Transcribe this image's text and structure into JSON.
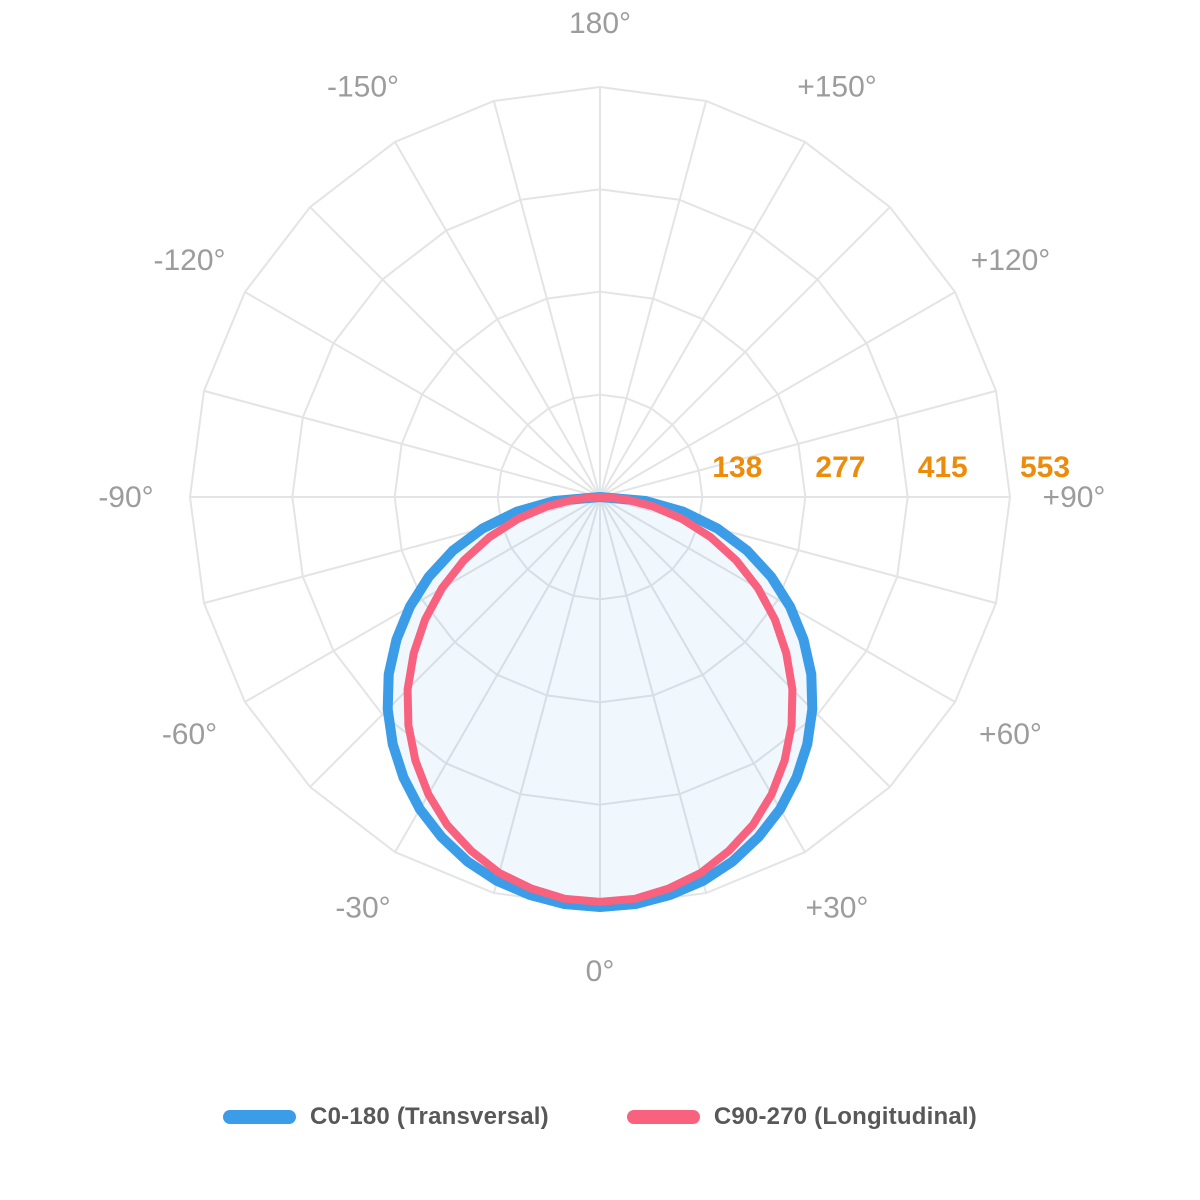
{
  "chart_data": {
    "type": "polar_photometric",
    "description": "Luminous intensity distribution polar diagram (light fixture photometry), lower hemisphere, two C-planes",
    "grid": {
      "spoke_step_deg": 15,
      "ring_style": "24-sided polygon",
      "grid_color": "#E3E4E6",
      "grid_on": true
    },
    "scale_max": 553,
    "radial_ticks": [
      138,
      277,
      415,
      553
    ],
    "radial_tick_labels": [
      "138",
      "277",
      "415",
      "553"
    ],
    "radial_tick_color": "#ED8B0B",
    "angle_labels": [
      {
        "angle": 0,
        "label": "0°"
      },
      {
        "angle": 30,
        "label": "+30°"
      },
      {
        "angle": 60,
        "label": "+60°"
      },
      {
        "angle": 90,
        "label": "+90°"
      },
      {
        "angle": 120,
        "label": "+120°"
      },
      {
        "angle": 150,
        "label": "+150°"
      },
      {
        "angle": 180,
        "label": "180°"
      },
      {
        "angle": -150,
        "label": "-150°"
      },
      {
        "angle": -120,
        "label": "-120°"
      },
      {
        "angle": -90,
        "label": "-90°"
      },
      {
        "angle": -60,
        "label": "-60°"
      },
      {
        "angle": -30,
        "label": "-30°"
      }
    ],
    "angle_label_color": "#9C9C9C",
    "series": [
      {
        "name": "C0-180 (Transversal)",
        "color": "#3B9DE8",
        "stroke_width": 10,
        "fill": "rgba(61,157,232,0.08)",
        "angles_deg": [
          -90,
          -85,
          -80,
          -75,
          -70,
          -65,
          -60,
          -55,
          -50,
          -45,
          -40,
          -35,
          -30,
          -25,
          -20,
          -15,
          -10,
          -5,
          0,
          5,
          10,
          15,
          20,
          25,
          30,
          35,
          40,
          45,
          50,
          55,
          60,
          65,
          70,
          75,
          80,
          85,
          90
        ],
        "values": [
          0,
          62,
          114,
          164,
          211,
          255,
          296,
          335,
          372,
          405,
          435,
          462,
          486,
          506,
          523,
          536,
          545,
          551,
          553,
          551,
          545,
          536,
          523,
          506,
          486,
          462,
          435,
          405,
          372,
          335,
          296,
          255,
          211,
          164,
          114,
          62,
          0
        ]
      },
      {
        "name": "C90-270 (Longitudinal)",
        "color": "#F8627F",
        "stroke_width": 8,
        "fill": "none",
        "angles_deg": [
          -90,
          -85,
          -80,
          -75,
          -70,
          -65,
          -60,
          -55,
          -50,
          -45,
          -40,
          -35,
          -30,
          -25,
          -20,
          -15,
          -10,
          -5,
          0,
          5,
          10,
          15,
          20,
          25,
          30,
          35,
          40,
          45,
          50,
          55,
          60,
          65,
          70,
          75,
          80,
          85,
          90
        ],
        "values": [
          0,
          33,
          73,
          115,
          159,
          203,
          246,
          288,
          328,
          367,
          402,
          434,
          463,
          488,
          508,
          525,
          536,
          544,
          546,
          544,
          536,
          525,
          508,
          488,
          463,
          434,
          402,
          367,
          328,
          288,
          246,
          203,
          159,
          115,
          73,
          33,
          0
        ]
      }
    ],
    "legend": {
      "position": "bottom",
      "items": [
        {
          "label": "C0-180 (Transversal)",
          "color": "#3B9DE8"
        },
        {
          "label": "C90-270 (Longitudinal)",
          "color": "#F8627F"
        }
      ]
    }
  }
}
